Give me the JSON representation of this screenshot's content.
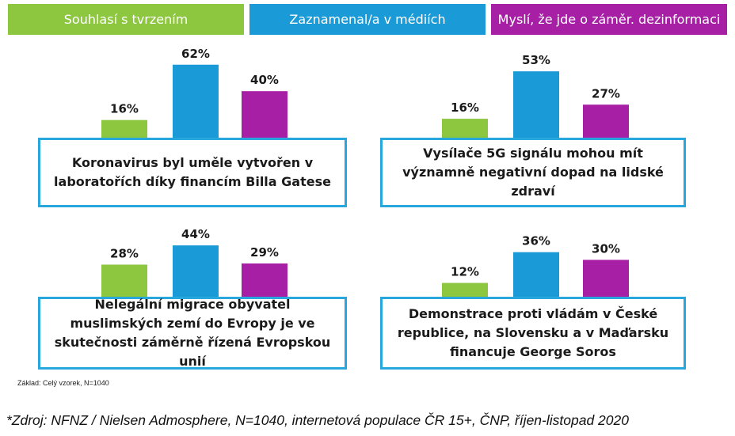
{
  "legend": [
    {
      "label": "Souhlasí s tvrzením",
      "color": "#8dc63f"
    },
    {
      "label": "Zaznamenal/a v médiích",
      "color": "#1a9ad6"
    },
    {
      "label": "Myslí, že jde o záměr. dezinformaci",
      "color": "#a61fa5"
    }
  ],
  "chart_data": [
    {
      "type": "bar",
      "title": "Koronavirus byl uměle vytvořen v laboratořích díky financím Billa Gatese",
      "categories": [
        "Souhlasí s tvrzením",
        "Zaznamenal/a v médiích",
        "Myslí, že jde o záměr. dezinformaci"
      ],
      "values": [
        16,
        62,
        40
      ],
      "value_labels": [
        "16%",
        "62%",
        "40%"
      ]
    },
    {
      "type": "bar",
      "title": "Vysílače 5G signálu mohou mít významně negativní dopad na lidské zdraví",
      "categories": [
        "Souhlasí s tvrzením",
        "Zaznamenal/a v médiích",
        "Myslí, že jde o záměr. dezinformaci"
      ],
      "values": [
        16,
        53,
        27
      ],
      "value_labels": [
        "16%",
        "53%",
        "27%"
      ]
    },
    {
      "type": "bar",
      "title": "Nelegální migrace obyvatel muslimských zemí do Evropy je ve skutečnosti záměrně řízená Evropskou unií",
      "categories": [
        "Souhlasí s tvrzením",
        "Zaznamenal/a v médiích",
        "Myslí, že jde o záměr. dezinformaci"
      ],
      "values": [
        28,
        44,
        29
      ],
      "value_labels": [
        "28%",
        "44%",
        "29%"
      ]
    },
    {
      "type": "bar",
      "title": "Demonstrace proti vládám v České republice, na Slovensku a v Maďarsku financuje George Soros",
      "categories": [
        "Souhlasí s tvrzením",
        "Zaznamenal/a v médiích",
        "Myslí, že jde o záměr. dezinformaci"
      ],
      "values": [
        12,
        36,
        30
      ],
      "value_labels": [
        "12%",
        "36%",
        "30%"
      ]
    }
  ],
  "base_note": "Základ: Celý vzorek, N=1040",
  "source": "*Zdroj: NFNZ / Nielsen Admosphere, N=1040, internetová populace ČR 15+, ČNP, říjen-listopad 2020"
}
